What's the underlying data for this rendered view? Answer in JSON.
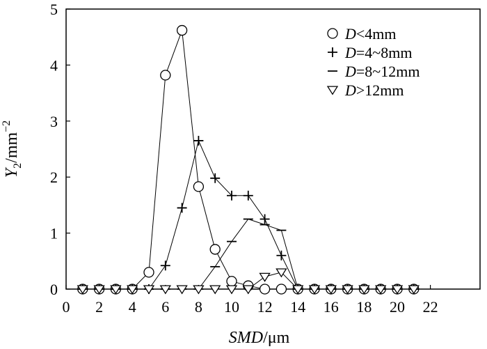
{
  "chart_data": {
    "type": "line",
    "xlabel": {
      "italic": "SMD",
      "rest": "/μm"
    },
    "ylabel": {
      "italic": "Y",
      "sub": "2",
      "rest": "/mm",
      "sup": "−2"
    },
    "xlim": [
      0,
      25
    ],
    "ylim": [
      0,
      5
    ],
    "xticks": [
      0,
      2,
      4,
      6,
      8,
      10,
      12,
      14,
      16,
      18,
      20,
      22
    ],
    "yticks": [
      0,
      1,
      2,
      3,
      4,
      5
    ],
    "grid": false,
    "legend_position": "top-right",
    "series": [
      {
        "name": "D<4mm",
        "legend": {
          "italic": "D",
          "rest": "<4mm"
        },
        "marker": "circle",
        "x": [
          1,
          2,
          3,
          4,
          5,
          6,
          7,
          8,
          9,
          10,
          11,
          12,
          13,
          14,
          15,
          16,
          17,
          18,
          19,
          20,
          21
        ],
        "y": [
          0,
          0,
          0,
          0,
          0.3,
          3.82,
          4.62,
          1.83,
          0.71,
          0.14,
          0.06,
          0,
          0,
          0,
          0,
          0,
          0,
          0,
          0,
          0,
          0
        ]
      },
      {
        "name": "D=4~8mm",
        "legend": {
          "italic": "D",
          "rest": "=4~8mm"
        },
        "marker": "plus",
        "x": [
          1,
          2,
          3,
          4,
          5,
          6,
          7,
          8,
          9,
          10,
          11,
          12,
          13,
          14,
          15,
          16,
          17,
          18,
          19,
          20,
          21
        ],
        "y": [
          0,
          0,
          0,
          0,
          0,
          0.42,
          1.45,
          2.65,
          1.98,
          1.67,
          1.67,
          1.25,
          0.6,
          0,
          0,
          0,
          0,
          0,
          0,
          0,
          0
        ]
      },
      {
        "name": "D=8~12mm",
        "legend": {
          "italic": "D",
          "rest": "=8~12mm"
        },
        "marker": "dash",
        "x": [
          1,
          2,
          3,
          4,
          5,
          6,
          7,
          8,
          9,
          10,
          11,
          12,
          13,
          14,
          15,
          16,
          17,
          18,
          19,
          20,
          21
        ],
        "y": [
          0,
          0,
          0,
          0,
          0,
          0,
          0,
          0,
          0.4,
          0.85,
          1.25,
          1.15,
          1.05,
          0,
          0,
          0,
          0,
          0,
          0,
          0,
          0
        ]
      },
      {
        "name": "D>12mm",
        "legend": {
          "italic": "D",
          "rest": ">12mm"
        },
        "marker": "triangle-down",
        "x": [
          1,
          2,
          3,
          4,
          5,
          6,
          7,
          8,
          9,
          10,
          11,
          12,
          13,
          14,
          15,
          16,
          17,
          18,
          19,
          20,
          21
        ],
        "y": [
          0,
          0,
          0,
          0,
          0,
          0,
          0,
          0,
          0,
          0,
          0,
          0.22,
          0.3,
          0,
          0,
          0,
          0,
          0,
          0,
          0,
          0
        ]
      }
    ]
  }
}
